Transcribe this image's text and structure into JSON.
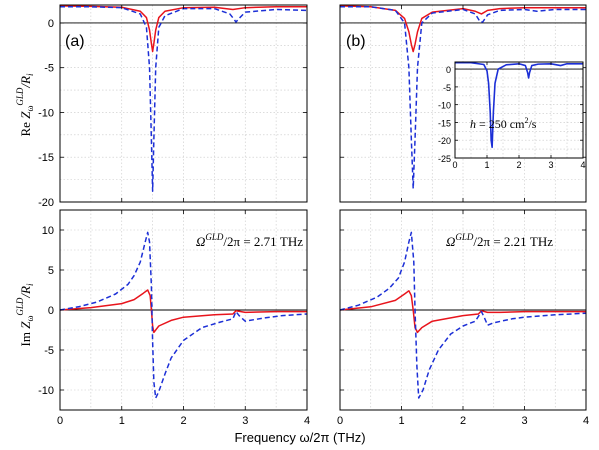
{
  "figure": {
    "xlabel": "Frequency ω/2π (THz)",
    "ylabel_top": {
      "prefix": "Re ",
      "sym": "Z",
      "sub": "ω",
      "sup": "GLD",
      "suffix": "/R",
      "sub2": "i"
    },
    "ylabel_bottom": {
      "prefix": "Im ",
      "sym": "Z",
      "sub": "ω",
      "sup": "GLD",
      "suffix": "/R",
      "sub2": "i"
    },
    "colors": {
      "solid": "#e8141c",
      "dashed": "#1c2fd6",
      "inset": "#1c2fd6",
      "zero": "#000000",
      "grid": "#c8c8c8"
    }
  },
  "chart_data": [
    {
      "id": "a-top",
      "type": "line",
      "panel_label": "(a)",
      "xlim": [
        0,
        4
      ],
      "ylim": [
        -20,
        2
      ],
      "xticks": [
        0,
        1,
        2,
        3,
        4
      ],
      "yticks": [
        0,
        -5,
        -10,
        -15,
        -20
      ],
      "grid": true,
      "series": [
        {
          "style": "solid",
          "x": [
            0,
            0.5,
            1.0,
            1.3,
            1.4,
            1.45,
            1.48,
            1.5,
            1.52,
            1.55,
            1.6,
            1.7,
            2.0,
            2.5,
            2.8,
            3.0,
            3.5,
            4.0
          ],
          "y": [
            1.9,
            1.85,
            1.75,
            1.3,
            0.6,
            -0.8,
            -2.3,
            -3.2,
            -2.3,
            -0.8,
            0.6,
            1.3,
            1.7,
            1.75,
            1.5,
            1.7,
            1.8,
            1.8
          ]
        },
        {
          "style": "dashed",
          "x": [
            0,
            0.5,
            1.0,
            1.3,
            1.4,
            1.45,
            1.48,
            1.5,
            1.52,
            1.55,
            1.6,
            1.7,
            2.0,
            2.5,
            2.75,
            2.82,
            2.85,
            2.9,
            3.0,
            3.5,
            4.0
          ],
          "y": [
            1.8,
            1.8,
            1.7,
            1.0,
            -0.5,
            -5.0,
            -13.0,
            -18.8,
            -13.0,
            -5.0,
            -0.5,
            0.8,
            1.6,
            1.6,
            1.0,
            0.4,
            0.1,
            0.5,
            1.2,
            1.5,
            1.4
          ]
        }
      ]
    },
    {
      "id": "a-bottom",
      "type": "line",
      "xlim": [
        0,
        4
      ],
      "ylim": [
        -12.5,
        12.5
      ],
      "xticks": [
        0,
        1,
        2,
        3,
        4
      ],
      "yticks": [
        10,
        5,
        0,
        -5,
        -10
      ],
      "grid": true,
      "annotation": {
        "lhs": "Ω",
        "sup": "GLD",
        "rhs": "/2π = 2.71 THz"
      },
      "series": [
        {
          "style": "solid",
          "x": [
            0,
            0.5,
            1.0,
            1.2,
            1.35,
            1.42,
            1.46,
            1.48,
            1.5,
            1.52,
            1.55,
            1.6,
            1.8,
            2.0,
            2.5,
            2.8,
            2.85,
            3.0,
            3.5,
            4.0
          ],
          "y": [
            0,
            0.3,
            0.8,
            1.3,
            2.1,
            2.5,
            1.8,
            0,
            -2.0,
            -2.8,
            -2.5,
            -2.0,
            -1.3,
            -0.9,
            -0.6,
            -0.5,
            -0.1,
            -0.3,
            -0.2,
            -0.2
          ]
        },
        {
          "style": "dashed",
          "x": [
            0,
            0.3,
            0.6,
            0.9,
            1.1,
            1.2,
            1.3,
            1.38,
            1.42,
            1.45,
            1.48,
            1.5,
            1.52,
            1.55,
            1.6,
            1.7,
            1.8,
            2.0,
            2.3,
            2.6,
            2.8,
            2.85,
            2.9,
            3.0,
            3.3,
            3.6,
            4.0
          ],
          "y": [
            0,
            0.4,
            1.0,
            2.0,
            3.2,
            4.3,
            6.0,
            8.5,
            9.7,
            8.5,
            3.0,
            -4.0,
            -9.0,
            -11.0,
            -10.2,
            -8.0,
            -6.0,
            -3.8,
            -2.2,
            -1.5,
            -1.1,
            -0.2,
            -0.7,
            -1.4,
            -1.0,
            -0.7,
            -0.5
          ]
        }
      ]
    },
    {
      "id": "b-top",
      "type": "line",
      "panel_label": "(b)",
      "xlim": [
        0,
        4
      ],
      "ylim": [
        -20,
        2
      ],
      "xticks": [
        0,
        1,
        2,
        3,
        4
      ],
      "yticks": [
        0,
        -5,
        -10,
        -15,
        -20
      ],
      "grid": true,
      "series": [
        {
          "style": "solid",
          "x": [
            0,
            0.5,
            0.9,
            1.05,
            1.12,
            1.16,
            1.19,
            1.22,
            1.26,
            1.33,
            1.5,
            2.0,
            2.2,
            2.3,
            2.4,
            2.6,
            3.0,
            3.5,
            4.0
          ],
          "y": [
            1.9,
            1.8,
            1.4,
            0.5,
            -1.0,
            -2.4,
            -3.2,
            -2.4,
            -1.0,
            0.5,
            1.2,
            1.6,
            1.3,
            1.0,
            1.4,
            1.6,
            1.7,
            1.7,
            1.7
          ]
        },
        {
          "style": "dashed",
          "x": [
            0,
            0.5,
            0.9,
            1.05,
            1.12,
            1.16,
            1.19,
            1.22,
            1.26,
            1.33,
            1.5,
            2.0,
            2.2,
            2.28,
            2.32,
            2.4,
            2.6,
            3.0,
            3.2,
            3.5,
            4.0
          ],
          "y": [
            1.8,
            1.8,
            1.4,
            0.0,
            -5.0,
            -13.0,
            -18.5,
            -13.0,
            -5.0,
            0.0,
            1.1,
            1.5,
            1.0,
            0.1,
            0.1,
            0.9,
            1.4,
            1.5,
            1.3,
            1.5,
            1.5
          ]
        }
      ]
    },
    {
      "id": "b-inset",
      "type": "line",
      "xlim": [
        0,
        4
      ],
      "ylim": [
        -25,
        2
      ],
      "xticks": [
        0,
        1,
        2,
        3,
        4
      ],
      "yticks": [
        0,
        -5,
        -10,
        -15,
        -20,
        -25
      ],
      "grid": true,
      "annotation": {
        "lhs": "h",
        "rhs": " = 250 cm",
        "sup": "2",
        "tail": "/s"
      },
      "series": [
        {
          "style": "solid",
          "x": [
            0,
            0.5,
            0.9,
            1.0,
            1.05,
            1.1,
            1.13,
            1.16,
            1.2,
            1.25,
            1.35,
            1.6,
            2.0,
            2.2,
            2.27,
            2.3,
            2.33,
            2.4,
            2.6,
            3.0,
            3.3,
            3.5,
            4.0
          ],
          "y": [
            1.8,
            1.8,
            1.3,
            -0.5,
            -4.0,
            -12.0,
            -20.0,
            -22.0,
            -12.0,
            -4.0,
            0.0,
            1.2,
            1.5,
            1.0,
            -1.0,
            -2.5,
            -1.0,
            1.0,
            1.4,
            1.5,
            1.0,
            1.5,
            1.5
          ]
        }
      ]
    },
    {
      "id": "b-bottom",
      "type": "line",
      "xlim": [
        0,
        4
      ],
      "ylim": [
        -12.5,
        12.5
      ],
      "xticks": [
        0,
        1,
        2,
        3,
        4
      ],
      "yticks": [
        10,
        5,
        0,
        -5,
        -10
      ],
      "grid": true,
      "annotation": {
        "lhs": "Ω",
        "sup": "GLD",
        "rhs": "/2π = 2.21 THz"
      },
      "series": [
        {
          "style": "solid",
          "x": [
            0,
            0.5,
            0.9,
            1.05,
            1.12,
            1.16,
            1.19,
            1.22,
            1.26,
            1.33,
            1.5,
            2.0,
            2.25,
            2.3,
            2.4,
            2.6,
            3.0,
            3.5,
            4.0
          ],
          "y": [
            0,
            0.4,
            1.2,
            2.0,
            2.4,
            1.8,
            0,
            -2.2,
            -2.8,
            -2.2,
            -1.4,
            -0.7,
            -0.5,
            -0.1,
            -0.3,
            -0.3,
            -0.2,
            -0.2,
            -0.2
          ]
        },
        {
          "style": "dashed",
          "x": [
            0,
            0.3,
            0.6,
            0.8,
            0.95,
            1.05,
            1.12,
            1.16,
            1.2,
            1.22,
            1.25,
            1.28,
            1.35,
            1.45,
            1.6,
            1.8,
            2.0,
            2.2,
            2.3,
            2.35,
            2.4,
            2.5,
            2.8,
            3.0,
            3.5,
            4.0
          ],
          "y": [
            0,
            0.6,
            1.6,
            2.7,
            4.0,
            6.0,
            8.5,
            9.7,
            6.0,
            0,
            -7.0,
            -11.0,
            -10.0,
            -7.5,
            -5.0,
            -3.0,
            -2.0,
            -1.4,
            -0.2,
            -1.0,
            -1.9,
            -1.6,
            -1.1,
            -0.9,
            -0.6,
            -0.4
          ]
        }
      ]
    }
  ]
}
